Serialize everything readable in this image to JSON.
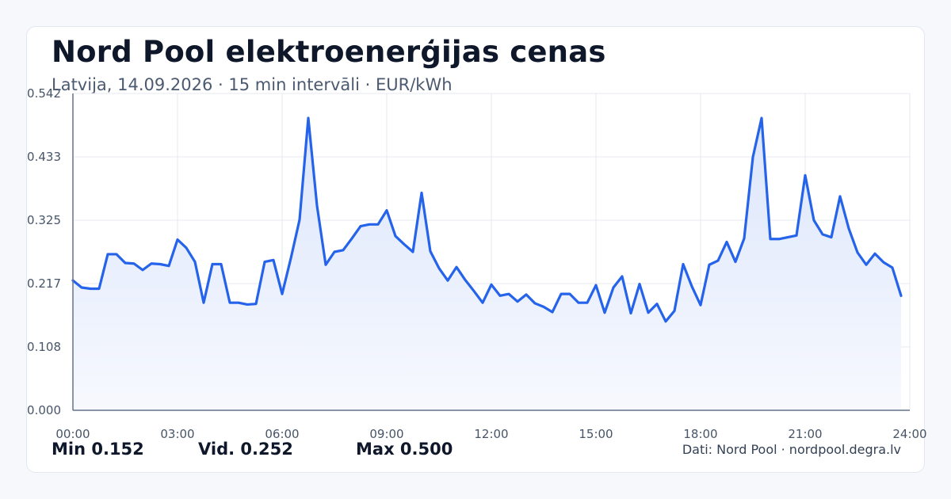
{
  "header": {
    "title": "Nord Pool elektroenerģijas cenas",
    "subtitle": "Latvija, 14.09.2026 · 15 min intervāli · EUR/kWh"
  },
  "stats": {
    "min": "Min 0.152",
    "avg": "Vid. 0.252",
    "max": "Max 0.500"
  },
  "source": "Dati: Nord Pool · nordpool.degra.lv",
  "colors": {
    "line": "#2563eb",
    "fill_top": "#dbe5fb",
    "fill_bottom": "#f7f9fe",
    "grid": "#e5e9f0",
    "axis": "#64748b",
    "tick_text": "#475569"
  },
  "chart_data": {
    "type": "area",
    "title": "Nord Pool elektroenerģijas cenas",
    "xlabel": "",
    "ylabel": "",
    "xlim": [
      0,
      24
    ],
    "ylim": [
      0,
      0.542
    ],
    "yticks": [
      "0.000",
      "0.108",
      "0.217",
      "0.325",
      "0.433",
      "0.542"
    ],
    "xticks": [
      "00:00",
      "03:00",
      "06:00",
      "09:00",
      "12:00",
      "15:00",
      "18:00",
      "21:00",
      "24:00"
    ],
    "grid": true,
    "x": [
      0,
      0.25,
      0.5,
      0.75,
      1,
      1.25,
      1.5,
      1.75,
      2,
      2.25,
      2.5,
      2.75,
      3,
      3.25,
      3.5,
      3.75,
      4,
      4.25,
      4.5,
      4.75,
      5,
      5.25,
      5.5,
      5.75,
      6,
      6.25,
      6.5,
      6.75,
      7,
      7.25,
      7.5,
      7.75,
      8,
      8.25,
      8.5,
      8.75,
      9,
      9.25,
      9.5,
      9.75,
      10,
      10.25,
      10.5,
      10.75,
      11,
      11.25,
      11.5,
      11.75,
      12,
      12.25,
      12.5,
      12.75,
      13,
      13.25,
      13.5,
      13.75,
      14,
      14.25,
      14.5,
      14.75,
      15,
      15.25,
      15.5,
      15.75,
      16,
      16.25,
      16.5,
      16.75,
      17,
      17.25,
      17.5,
      17.75,
      18,
      18.25,
      18.5,
      18.75,
      19,
      19.25,
      19.5,
      19.75,
      20,
      20.25,
      20.5,
      20.75,
      21,
      21.25,
      21.5,
      21.75,
      22,
      22.25,
      22.5,
      22.75,
      23,
      23.25,
      23.5,
      23.75
    ],
    "series": [
      {
        "values": [
          0.222,
          0.21,
          0.208,
          0.208,
          0.267,
          0.267,
          0.252,
          0.251,
          0.24,
          0.251,
          0.25,
          0.247,
          0.292,
          0.278,
          0.254,
          0.184,
          0.25,
          0.25,
          0.184,
          0.184,
          0.181,
          0.182,
          0.254,
          0.257,
          0.199,
          0.26,
          0.326,
          0.5,
          0.35,
          0.249,
          0.271,
          0.274,
          0.294,
          0.315,
          0.318,
          0.318,
          0.342,
          0.298,
          0.284,
          0.271,
          0.372,
          0.272,
          0.243,
          0.222,
          0.245,
          0.223,
          0.204,
          0.184,
          0.215,
          0.196,
          0.199,
          0.186,
          0.198,
          0.183,
          0.177,
          0.168,
          0.199,
          0.199,
          0.184,
          0.184,
          0.214,
          0.167,
          0.21,
          0.229,
          0.166,
          0.216,
          0.167,
          0.182,
          0.152,
          0.17,
          0.25,
          0.212,
          0.18,
          0.249,
          0.256,
          0.288,
          0.254,
          0.294,
          0.433,
          0.5,
          0.293,
          0.293,
          0.296,
          0.299,
          0.402,
          0.325,
          0.301,
          0.296,
          0.366,
          0.311,
          0.27,
          0.249,
          0.268,
          0.253,
          0.244,
          0.196
        ]
      }
    ]
  }
}
